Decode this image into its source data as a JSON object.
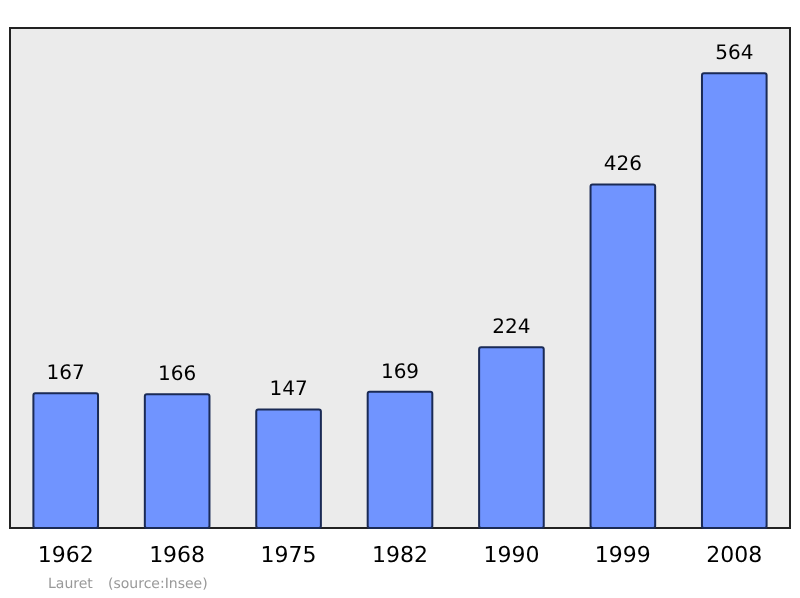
{
  "chart_data": {
    "type": "bar",
    "categories": [
      "1962",
      "1968",
      "1975",
      "1982",
      "1990",
      "1999",
      "2008"
    ],
    "values": [
      167,
      166,
      147,
      169,
      224,
      426,
      564
    ],
    "color": "#7094ff",
    "ylim": [
      0,
      620
    ],
    "data_labels": true,
    "annotations": [
      "Lauret",
      "(source:Insee)"
    ]
  }
}
